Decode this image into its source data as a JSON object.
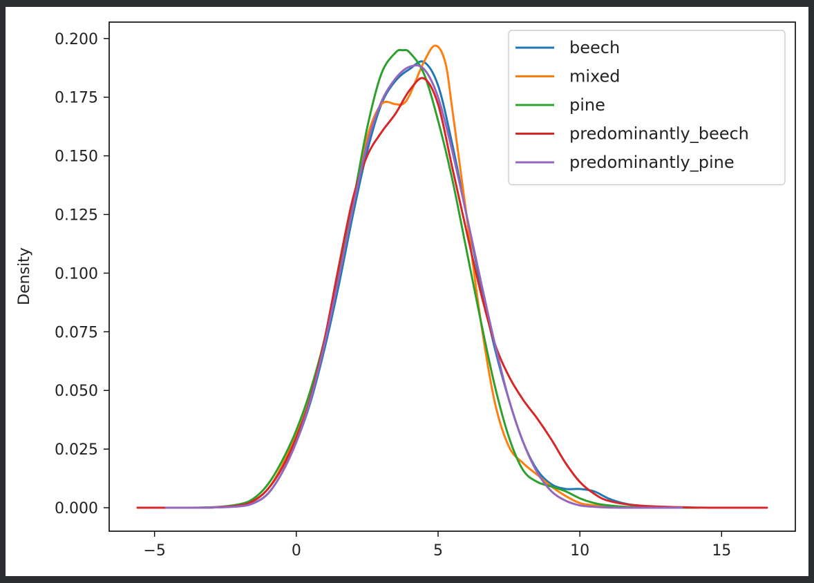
{
  "chart_data": {
    "type": "line",
    "title": "",
    "xlabel": "",
    "ylabel": "Density",
    "xlim": [
      -6.6,
      17.6
    ],
    "ylim": [
      -0.01,
      0.207
    ],
    "x_ticks": [
      -5,
      0,
      5,
      10,
      15
    ],
    "x_tick_labels": [
      "−5",
      "0",
      "5",
      "10",
      "15"
    ],
    "y_ticks": [
      0.0,
      0.025,
      0.05,
      0.075,
      0.1,
      0.125,
      0.15,
      0.175,
      0.2
    ],
    "y_tick_labels": [
      "0.000",
      "0.025",
      "0.050",
      "0.075",
      "0.100",
      "0.125",
      "0.150",
      "0.175",
      "0.200"
    ],
    "grid": false,
    "legend_position": "top-right",
    "series": [
      {
        "name": "beech",
        "color": "#1f77b4",
        "x": [
          -4.8,
          -3,
          -2,
          -1.5,
          -1,
          -0.5,
          0,
          0.5,
          1,
          1.5,
          2,
          2.5,
          3,
          3.5,
          4,
          4.5,
          5,
          5.5,
          6,
          6.5,
          7,
          7.5,
          8,
          8.5,
          9,
          9.5,
          10,
          10.5,
          11,
          11.5,
          12,
          13,
          14.2
        ],
        "y": [
          0,
          0.0001,
          0.0007,
          0.002,
          0.006,
          0.015,
          0.028,
          0.045,
          0.068,
          0.095,
          0.125,
          0.152,
          0.172,
          0.182,
          0.187,
          0.19,
          0.18,
          0.155,
          0.125,
          0.095,
          0.068,
          0.046,
          0.028,
          0.016,
          0.01,
          0.008,
          0.008,
          0.007,
          0.004,
          0.002,
          0.001,
          0.0002,
          0
        ]
      },
      {
        "name": "mixed",
        "color": "#ff7f0e",
        "x": [
          -4.6,
          -3,
          -2,
          -1.5,
          -1,
          -0.5,
          0,
          0.5,
          1,
          1.5,
          2,
          2.5,
          3,
          3.5,
          3.75,
          4,
          4.5,
          4.9,
          5.25,
          5.5,
          6,
          6.5,
          7,
          7.5,
          8,
          8.5,
          9,
          9.5,
          10,
          10.5,
          11,
          12,
          13.6
        ],
        "y": [
          0,
          0.0001,
          0.0008,
          0.003,
          0.008,
          0.018,
          0.032,
          0.05,
          0.072,
          0.1,
          0.13,
          0.158,
          0.172,
          0.172,
          0.172,
          0.176,
          0.19,
          0.197,
          0.19,
          0.17,
          0.125,
          0.08,
          0.045,
          0.026,
          0.019,
          0.014,
          0.009,
          0.005,
          0.002,
          0.001,
          0.0004,
          0.0001,
          0
        ]
      },
      {
        "name": "pine",
        "color": "#2ca02c",
        "x": [
          -4.8,
          -3,
          -2,
          -1.5,
          -1,
          -0.5,
          0,
          0.5,
          1,
          1.5,
          2,
          2.5,
          3,
          3.5,
          3.75,
          4,
          4.5,
          5,
          5.5,
          6,
          6.5,
          7,
          7.5,
          8,
          8.5,
          9,
          9.5,
          10,
          10.5,
          11,
          12,
          13,
          14.2
        ],
        "y": [
          0,
          0.0002,
          0.0015,
          0.004,
          0.01,
          0.02,
          0.033,
          0.05,
          0.072,
          0.1,
          0.13,
          0.162,
          0.185,
          0.194,
          0.195,
          0.194,
          0.185,
          0.165,
          0.14,
          0.11,
          0.08,
          0.052,
          0.03,
          0.016,
          0.011,
          0.009,
          0.007,
          0.004,
          0.002,
          0.001,
          0.0002,
          0.0001,
          0
        ]
      },
      {
        "name": "predominantly_beech",
        "color": "#d62728",
        "x": [
          -5.6,
          -4,
          -3,
          -2,
          -1.5,
          -1,
          -0.5,
          0,
          0.5,
          1,
          1.5,
          2,
          2.5,
          3,
          3.5,
          4,
          4.5,
          5,
          5.5,
          6,
          6.5,
          7,
          7.5,
          8,
          8.5,
          9,
          9.5,
          10,
          10.5,
          11,
          12,
          14,
          16.6
        ],
        "y": [
          0,
          0,
          0.0001,
          0.001,
          0.003,
          0.008,
          0.017,
          0.03,
          0.047,
          0.072,
          0.103,
          0.132,
          0.15,
          0.16,
          0.168,
          0.178,
          0.183,
          0.172,
          0.145,
          0.118,
          0.092,
          0.07,
          0.056,
          0.046,
          0.038,
          0.029,
          0.019,
          0.011,
          0.006,
          0.003,
          0.001,
          0.0001,
          0
        ]
      },
      {
        "name": "predominantly_pine",
        "color": "#9467bd",
        "x": [
          -4.6,
          -3,
          -2,
          -1.5,
          -1,
          -0.5,
          0,
          0.5,
          1,
          1.5,
          2,
          2.5,
          3,
          3.5,
          4,
          4.5,
          5,
          5.5,
          6,
          6.5,
          7,
          7.5,
          8,
          8.5,
          9,
          9.5,
          10,
          10.5,
          11,
          12,
          13.6
        ],
        "y": [
          0,
          0.0001,
          0.0006,
          0.002,
          0.006,
          0.015,
          0.028,
          0.046,
          0.07,
          0.098,
          0.128,
          0.155,
          0.173,
          0.183,
          0.188,
          0.187,
          0.175,
          0.152,
          0.125,
          0.097,
          0.07,
          0.046,
          0.028,
          0.015,
          0.007,
          0.003,
          0.001,
          0.0004,
          0.0001,
          0,
          0
        ]
      }
    ]
  }
}
